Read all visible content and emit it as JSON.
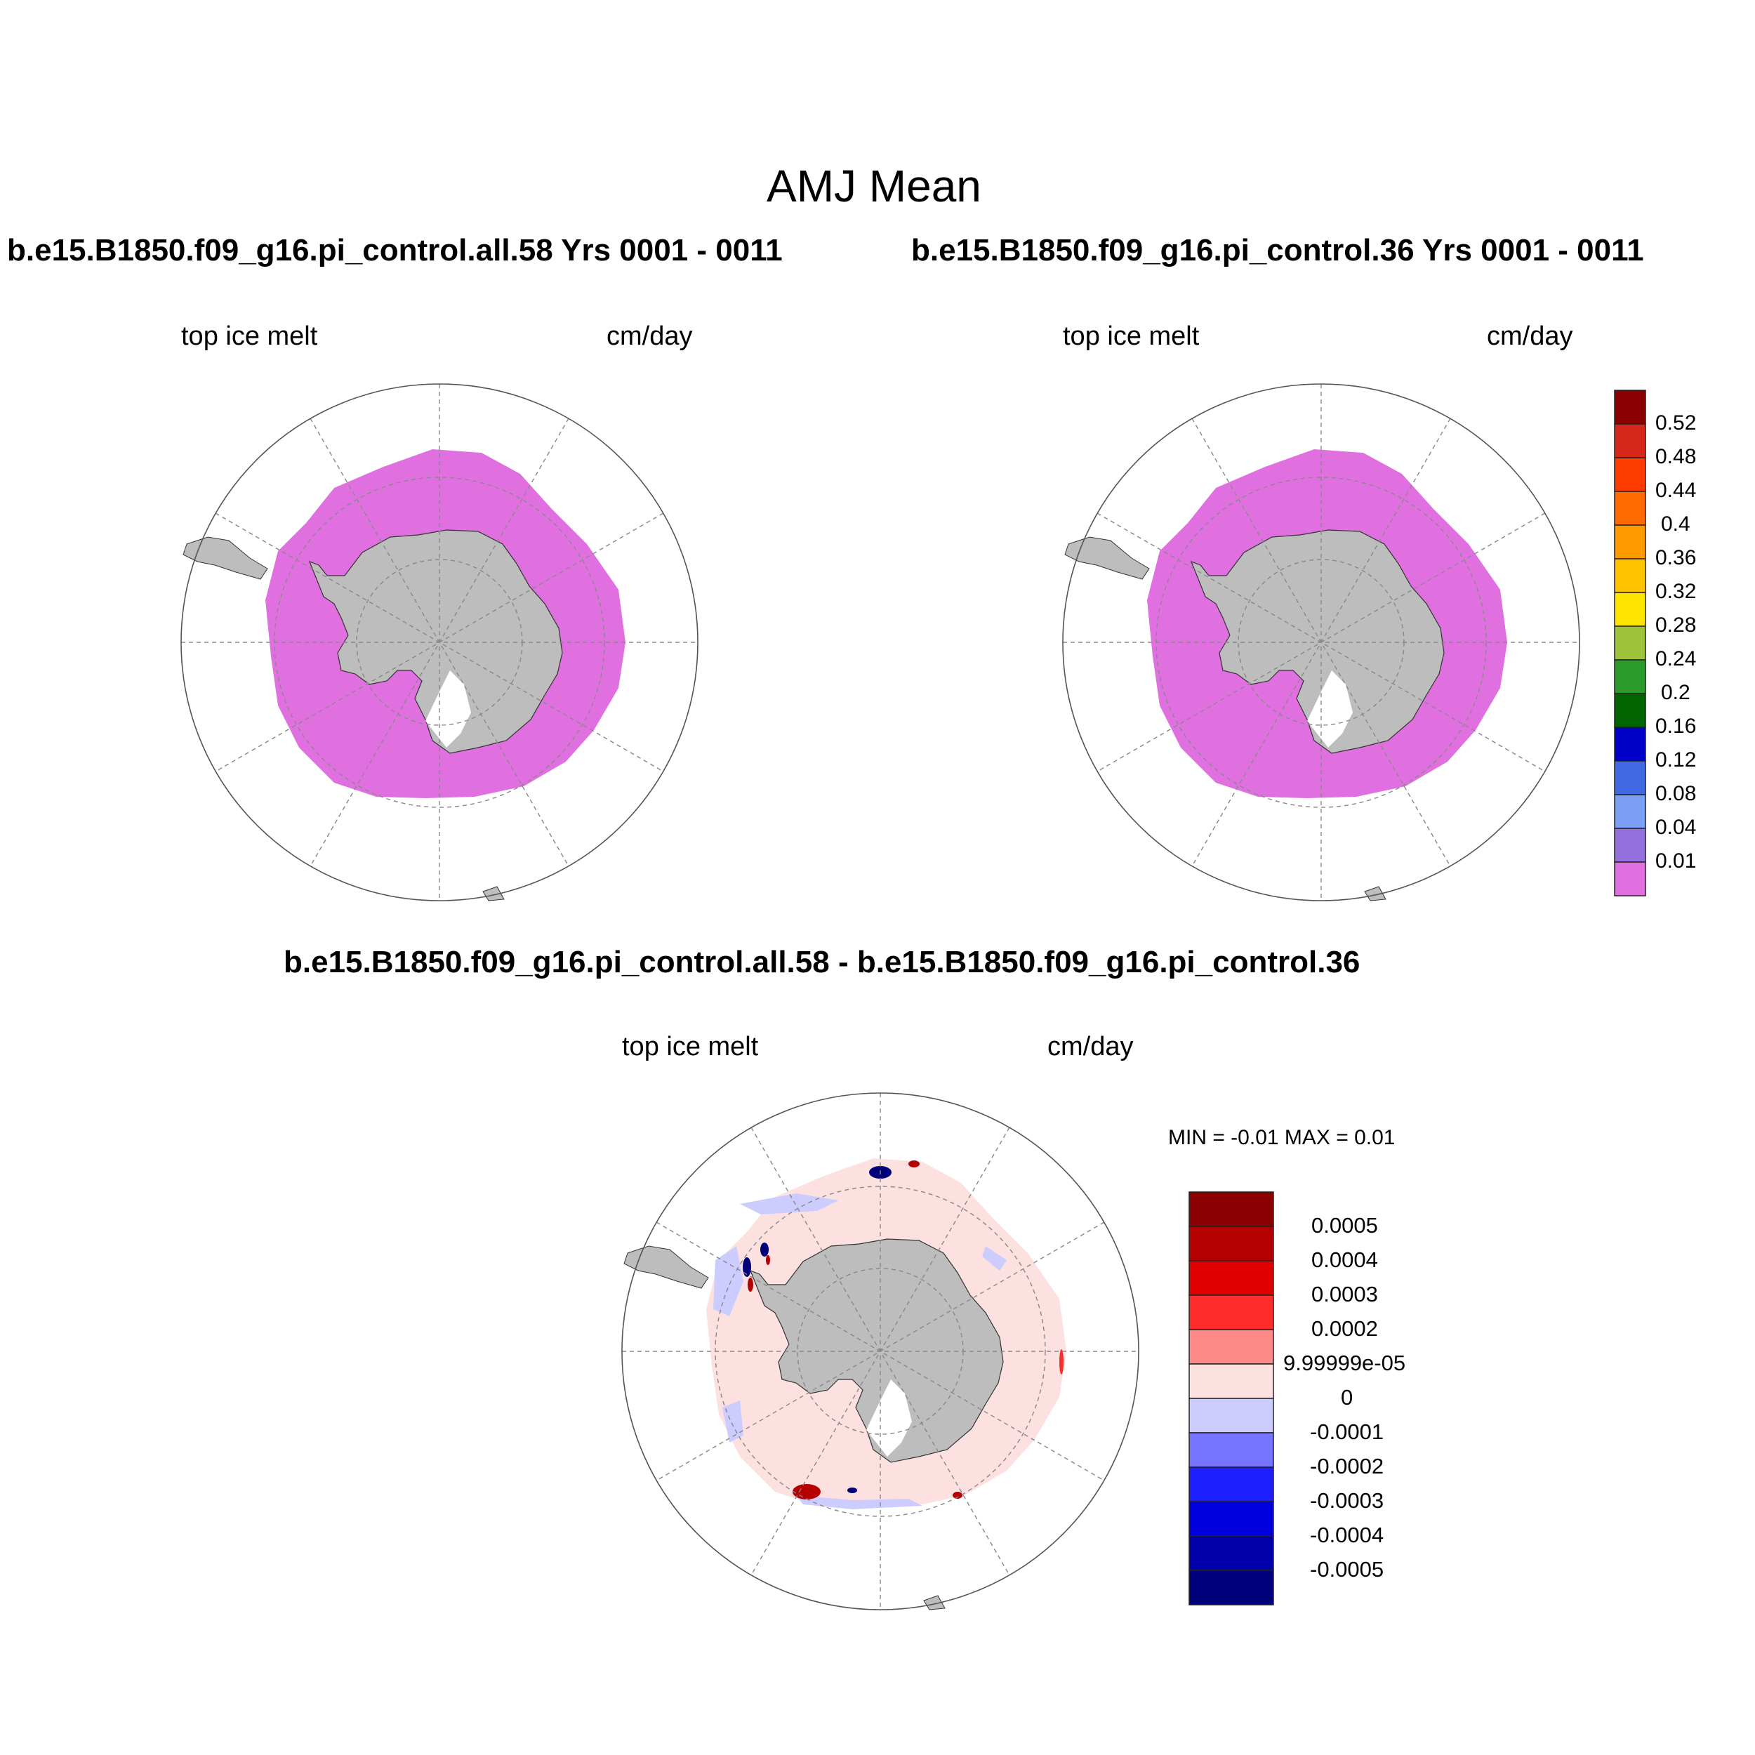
{
  "figure": {
    "title": "AMJ Mean"
  },
  "panels": [
    {
      "id": "case1",
      "case_title": "b.e15.B1850.f09_g16.pi_control.all.58  Yrs 0001 - 0011",
      "left_label": "top ice melt",
      "right_label": "cm/day"
    },
    {
      "id": "case2",
      "case_title": "b.e15.B1850.f09_g16.pi_control.36  Yrs 0001 - 0011",
      "left_label": "top ice melt",
      "right_label": "cm/day"
    },
    {
      "id": "diff",
      "case_title": "b.e15.B1850.f09_g16.pi_control.all.58 - b.e15.B1850.f09_g16.pi_control.36",
      "left_label": "top ice melt",
      "right_label": "cm/day",
      "minmax": "MIN =  -0.01 MAX =   0.01"
    }
  ],
  "colorbar_main": {
    "labels": [
      "0.52",
      "0.48",
      "0.44",
      "0.4",
      "0.36",
      "0.32",
      "0.28",
      "0.24",
      "0.2",
      "0.16",
      "0.12",
      "0.08",
      "0.04",
      "0.01"
    ],
    "colors": [
      "#8b0000",
      "#d7261a",
      "#ff3c00",
      "#ff6a00",
      "#ff9a00",
      "#ffc300",
      "#ffe600",
      "#9dc33b",
      "#2a9a2a",
      "#006400",
      "#0000c8",
      "#4169e1",
      "#7a9ff5",
      "#9370db",
      "#e070e0"
    ]
  },
  "colorbar_diff": {
    "labels": [
      "0.0005",
      "0.0004",
      "0.0003",
      "0.0002",
      "9.99999e-05",
      "0",
      "-0.0001",
      "-0.0002",
      "-0.0003",
      "-0.0004",
      "-0.0005"
    ],
    "colors": [
      "#8b0000",
      "#b40000",
      "#e00000",
      "#ff2c2c",
      "#ff8888",
      "#fde0e0",
      "#ccccff",
      "#7575ff",
      "#1e1eff",
      "#0000dd",
      "#0000aa",
      "#00007a"
    ]
  },
  "map_colors": {
    "land": "#bdbdbd",
    "ice_field": "#e070e0",
    "diff_field": "#fde0e0",
    "diff_negative_light": "#ccccff",
    "diff_positive": "#b40000",
    "diff_negative": "#00007a"
  }
}
